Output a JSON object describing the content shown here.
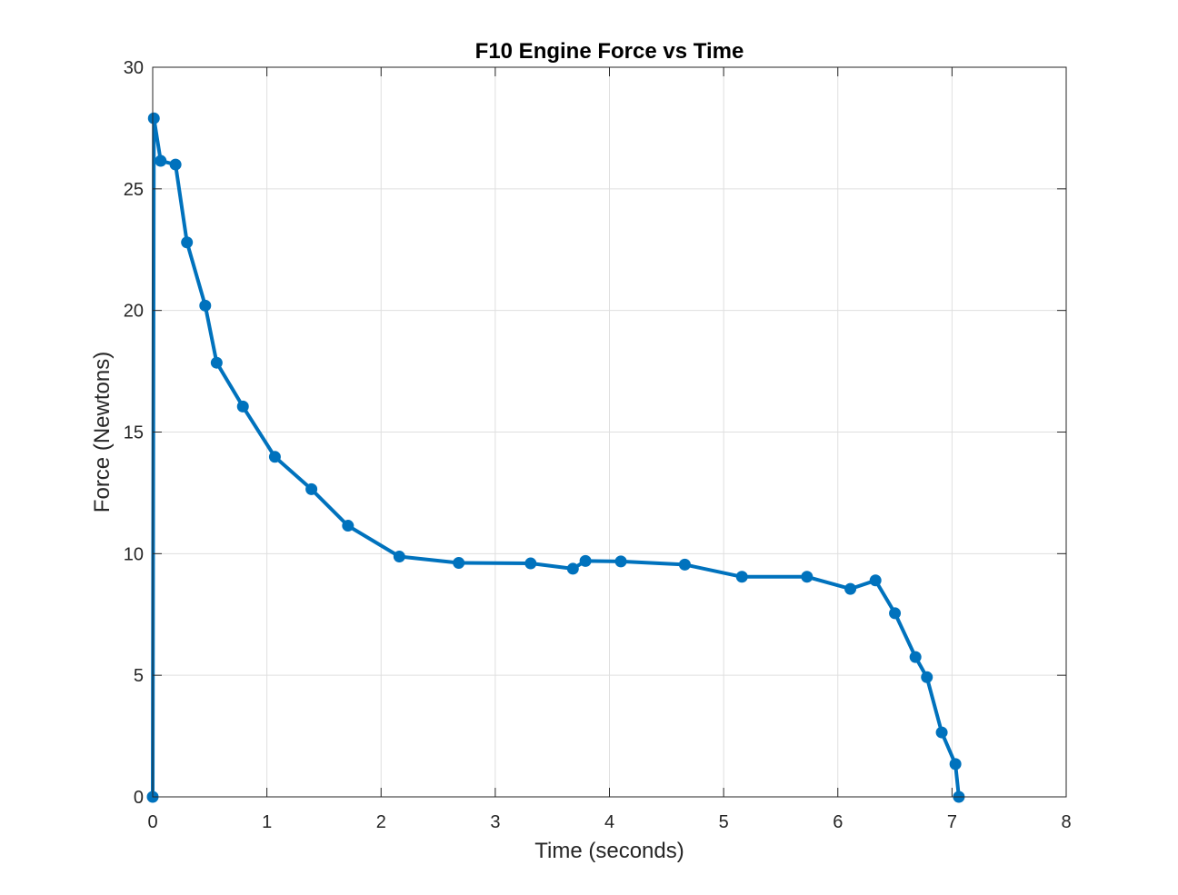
{
  "chart_data": {
    "type": "line",
    "title": "F10 Engine Force vs Time",
    "xlabel": "Time (seconds)",
    "ylabel": "Force (Newtons)",
    "xlim": [
      0,
      8
    ],
    "ylim": [
      0,
      30
    ],
    "xticks": [
      0,
      1,
      2,
      3,
      4,
      5,
      6,
      7,
      8
    ],
    "yticks": [
      0,
      5,
      10,
      15,
      20,
      25,
      30
    ],
    "grid": true,
    "markers": true,
    "colors": {
      "line": "#0072BD",
      "grid": "#dfdfdf",
      "axes": "#262626"
    },
    "series": [
      {
        "x": [
          0.0,
          0.01,
          0.07,
          0.2,
          0.3,
          0.46,
          0.56,
          0.79,
          1.07,
          1.39,
          1.71,
          2.16,
          2.68,
          3.31,
          3.68,
          3.79,
          4.1,
          4.66,
          5.16,
          5.73,
          6.11,
          6.33,
          6.5,
          6.68,
          6.78,
          6.91,
          7.03,
          7.06
        ],
        "y": [
          0.0,
          27.9,
          26.15,
          26.0,
          22.8,
          20.2,
          17.85,
          16.05,
          13.98,
          12.65,
          11.15,
          9.88,
          9.62,
          9.6,
          9.38,
          9.7,
          9.68,
          9.55,
          9.05,
          9.05,
          8.55,
          8.9,
          7.55,
          5.75,
          4.92,
          2.65,
          1.35,
          0.0
        ]
      }
    ]
  }
}
